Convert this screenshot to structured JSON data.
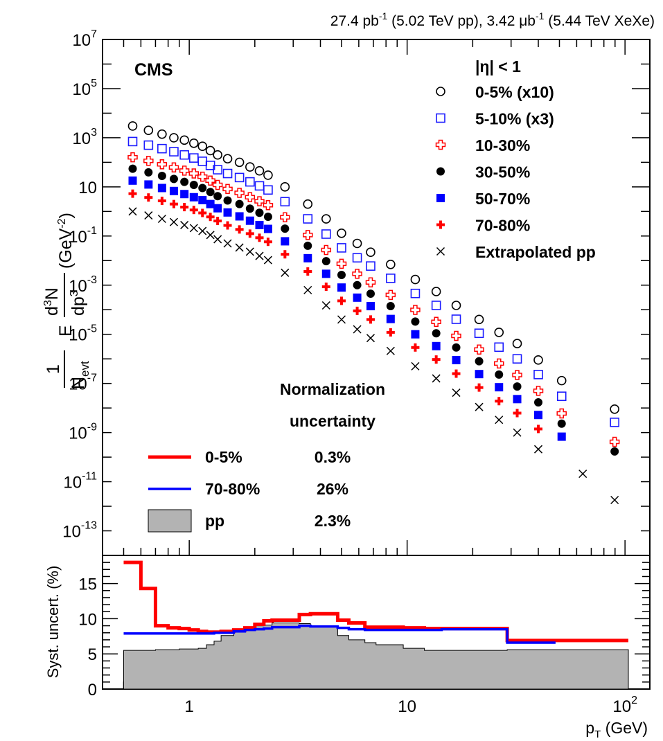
{
  "header": {
    "pp_lumi": "27.4 pb",
    "pp_lumi_exp": "-1",
    "pp_energy": " (5.02 TeV pp), ",
    "xexe_lumi": "3.42 μb",
    "xexe_lumi_exp": "-1",
    "xexe_energy": " (5.44 TeV XeXe)"
  },
  "labels": {
    "experiment": "CMS",
    "eta_cut": "|η| < 1",
    "norm_title_1": "Normalization",
    "norm_title_2": "uncertainty",
    "y_one": "1",
    "y_nevt": "N",
    "y_nevt_sub": "evt",
    "y_E": "E",
    "y_num": "d",
    "y_num_exp": "3",
    "y_num_N": "N",
    "y_den": "dp",
    "y_den_exp": "3",
    "y_unit": "(GeV",
    "y_unit_exp": "-2",
    "y_unit_close": ")",
    "ratio_ylabel": "Syst. uncert. (%)",
    "x_label_p": "p",
    "x_label_sub": "T",
    "x_label_unit": " (GeV)"
  },
  "legend": [
    {
      "label": "0-5% (x10)",
      "marker": "open-circle",
      "color": "#000000"
    },
    {
      "label": "5-10% (x3)",
      "marker": "open-square",
      "color": "#1a1aff"
    },
    {
      "label": "10-30%",
      "marker": "open-cross",
      "color": "#ff0000"
    },
    {
      "label": "30-50%",
      "marker": "filled-circle",
      "color": "#000000"
    },
    {
      "label": "50-70%",
      "marker": "filled-square",
      "color": "#0000ff"
    },
    {
      "label": "70-80%",
      "marker": "filled-cross",
      "color": "#ff0000"
    },
    {
      "label": "Extrapolated pp",
      "marker": "x",
      "color": "#000000"
    }
  ],
  "normalization": [
    {
      "label": "0-5%",
      "value": "0.3%",
      "style": "line",
      "color": "#ff0000"
    },
    {
      "label": "70-80%",
      "value": "26%",
      "style": "line",
      "color": "#0000ff"
    },
    {
      "label": "pp",
      "value": "2.3%",
      "style": "box",
      "color": "#b3b3b3"
    }
  ],
  "chart_data": [
    {
      "type": "scatter",
      "xscale": "log",
      "yscale": "log",
      "xlim": [
        0.4,
        130
      ],
      "ylim": [
        1e-14,
        10000000.0
      ],
      "y_ticks": [
        {
          "value": 10000000.0,
          "base": "10",
          "exp": "7"
        },
        {
          "value": 100000.0,
          "base": "10",
          "exp": "5"
        },
        {
          "value": 1000.0,
          "base": "10",
          "exp": "3"
        },
        {
          "value": 10,
          "base": "10",
          "exp": ""
        },
        {
          "value": 0.1,
          "base": "10",
          "exp": "-1"
        },
        {
          "value": 0.001,
          "base": "10",
          "exp": "-3"
        },
        {
          "value": 1e-05,
          "base": "10",
          "exp": "-5"
        },
        {
          "value": 1e-07,
          "base": "10",
          "exp": "-7"
        },
        {
          "value": 1e-09,
          "base": "10",
          "exp": "-9"
        },
        {
          "value": 1e-11,
          "base": "10",
          "exp": "-11"
        },
        {
          "value": 1e-13,
          "base": "10",
          "exp": "-13"
        }
      ],
      "x": [
        0.55,
        0.65,
        0.75,
        0.85,
        0.95,
        1.05,
        1.15,
        1.25,
        1.35,
        1.5,
        1.7,
        1.9,
        2.1,
        2.3,
        2.75,
        3.5,
        4.25,
        5.0,
        5.9,
        6.8,
        8.4,
        10.9,
        13.6,
        16.8,
        21.4,
        26.4,
        32.0,
        40.0,
        51.2,
        64.0,
        89.6
      ],
      "series": [
        {
          "name": "0-5% (x10)",
          "values": [
            3000.0,
            2000.0,
            1400.0,
            1000.0,
            800.0,
            600.0,
            450.0,
            300.0,
            200.0,
            140.0,
            100.0,
            65.0,
            45.0,
            30.0,
            10.0,
            2.0,
            0.5,
            0.13,
            0.05,
            0.022,
            0.007,
            0.0017,
            0.00055,
            0.00015,
            4e-05,
            1.2e-05,
            4.2e-06,
            9e-07,
            1.3e-07,
            null,
            9e-09
          ]
        },
        {
          "name": "5-10% (x3)",
          "values": [
            700.0,
            500.0,
            360.0,
            270.0,
            200.0,
            150.0,
            110.0,
            75.0,
            50.0,
            35.0,
            24.0,
            16.0,
            11.0,
            7.5,
            2.5,
            0.5,
            0.12,
            0.033,
            0.013,
            0.006,
            0.0019,
            0.00046,
            0.00015,
            4.1e-05,
            1.1e-05,
            3e-06,
            1e-06,
            2.3e-07,
            3e-08,
            null,
            2.6e-09
          ]
        },
        {
          "name": "10-30%",
          "values": [
            160.0,
            115.0,
            83.0,
            62.0,
            46.0,
            35.0,
            26.0,
            18.0,
            12.0,
            8.2,
            5.7,
            3.8,
            2.6,
            1.8,
            0.58,
            0.11,
            0.027,
            0.0074,
            0.0029,
            0.0013,
            0.0004,
            9.8e-05,
            3.2e-05,
            8.6e-06,
            2.4e-06,
            6.5e-07,
            2.2e-07,
            5e-08,
            6e-09,
            null,
            4.2e-10
          ]
        },
        {
          "name": "30-50%",
          "values": [
            55.0,
            39.0,
            28.0,
            21.0,
            16.0,
            12.0,
            9.0,
            6.2,
            4.2,
            2.8,
            2.0,
            1.3,
            0.88,
            0.61,
            0.2,
            0.04,
            0.0095,
            0.0026,
            0.001,
            0.00045,
            0.00014,
            3.3e-05,
            1.1e-05,
            2.9e-06,
            8e-07,
            2.3e-07,
            7.5e-08,
            1.7e-08,
            2.3e-09,
            null,
            1.7e-10
          ]
        },
        {
          "name": "50-70%",
          "values": [
            18.0,
            12.5,
            9.0,
            6.8,
            5.1,
            3.8,
            2.9,
            2.0,
            1.35,
            0.91,
            0.63,
            0.42,
            0.28,
            0.195,
            0.061,
            0.0125,
            0.0029,
            0.0008,
            0.00031,
            0.00014,
            4.2e-05,
            1e-05,
            3.3e-06,
            8.9e-07,
            2.4e-07,
            7e-08,
            2.3e-08,
            5.2e-09,
            6.8e-10,
            null,
            null
          ]
        },
        {
          "name": "70-80%",
          "values": [
            5.3,
            3.7,
            2.7,
            2.0,
            1.5,
            1.15,
            0.87,
            0.6,
            0.41,
            0.27,
            0.185,
            0.125,
            0.085,
            0.058,
            0.018,
            0.0036,
            0.00086,
            0.00023,
            9e-05,
            4e-05,
            1.2e-05,
            2.9e-06,
            9.4e-07,
            2.5e-07,
            6.8e-08,
            1.9e-08,
            6.2e-09,
            1.4e-09,
            null,
            null,
            null
          ]
        },
        {
          "name": "Extrapolated pp",
          "values": [
            1.0,
            0.69,
            0.5,
            0.37,
            0.28,
            0.21,
            0.16,
            0.11,
            0.074,
            0.05,
            0.034,
            0.023,
            0.0155,
            0.0105,
            0.0032,
            0.00063,
            0.00015,
            4e-05,
            1.6e-05,
            7e-06,
            2.1e-06,
            5e-07,
            1.6e-07,
            4.2e-08,
            1.1e-08,
            3.3e-09,
            1e-09,
            2.1e-10,
            null,
            2.1e-11,
            1.8e-12
          ]
        }
      ]
    },
    {
      "type": "line",
      "xscale": "log",
      "xlim": [
        0.4,
        130
      ],
      "ylim": [
        0,
        19
      ],
      "y_ticks": [
        0,
        5,
        10,
        15
      ],
      "x_ticks": [
        {
          "value": 1,
          "base": "1",
          "exp": ""
        },
        {
          "value": 10,
          "base": "10",
          "exp": ""
        },
        {
          "value": 100,
          "base": "10",
          "exp": "2"
        }
      ],
      "bin_edges": [
        0.5,
        0.6,
        0.7,
        0.8,
        0.9,
        1.0,
        1.1,
        1.2,
        1.3,
        1.4,
        1.6,
        1.8,
        2.0,
        2.2,
        2.4,
        3.2,
        3.6,
        4.8,
        5.4,
        6.4,
        7.2,
        9.6,
        12.0,
        14.4,
        19.2,
        24.0,
        28.8,
        35.2,
        48.0,
        73.6,
        103.6
      ],
      "series": [
        {
          "name": "0-5%",
          "values": [
            18.0,
            14.3,
            9.0,
            8.7,
            8.6,
            8.4,
            8.2,
            8.1,
            8.1,
            8.2,
            8.4,
            8.7,
            9.2,
            9.7,
            9.8,
            10.6,
            10.7,
            9.8,
            9.4,
            8.8,
            8.8,
            8.7,
            8.6,
            8.6,
            8.6,
            8.6,
            6.9,
            6.9,
            6.9,
            6.9
          ]
        },
        {
          "name": "70-80%",
          "values": [
            7.9,
            7.9,
            7.9,
            7.9,
            7.9,
            7.9,
            7.9,
            7.9,
            8.0,
            8.0,
            8.2,
            8.4,
            8.5,
            8.6,
            8.8,
            9.0,
            8.9,
            8.7,
            8.5,
            8.4,
            8.4,
            8.4,
            8.4,
            8.5,
            8.5,
            8.5,
            6.6,
            6.6,
            null,
            null
          ]
        },
        {
          "name": "pp",
          "values": [
            5.5,
            5.5,
            5.6,
            5.6,
            5.7,
            5.7,
            5.8,
            6.3,
            6.8,
            7.6,
            8.1,
            8.5,
            9.0,
            9.1,
            9.4,
            9.3,
            9.0,
            7.6,
            7.0,
            6.6,
            6.3,
            5.8,
            5.5,
            5.5,
            5.5,
            5.5,
            5.6,
            5.6,
            5.6,
            5.6
          ]
        }
      ]
    }
  ]
}
